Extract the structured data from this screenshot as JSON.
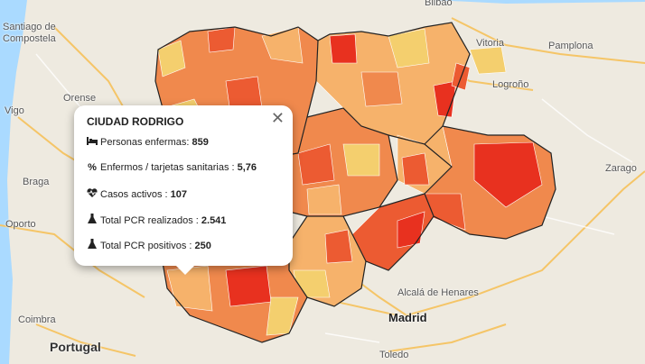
{
  "map": {
    "cities": [
      {
        "id": "bilbao",
        "name": "Bilbao"
      },
      {
        "id": "santiago",
        "name": "Santiago de"
      },
      {
        "id": "santiago2",
        "name": "Compostela"
      },
      {
        "id": "vitoria",
        "name": "Vitoria"
      },
      {
        "id": "pamplona",
        "name": "Pamplona"
      },
      {
        "id": "orense",
        "name": "Orense"
      },
      {
        "id": "logrono",
        "name": "Logroño"
      },
      {
        "id": "vigo",
        "name": "Vigo"
      },
      {
        "id": "braga",
        "name": "Braga"
      },
      {
        "id": "zaragoza",
        "name": "Zarago"
      },
      {
        "id": "oporto",
        "name": "Oporto"
      },
      {
        "id": "alcala",
        "name": "Alcalá de Henares"
      },
      {
        "id": "madrid",
        "name": "Madrid"
      },
      {
        "id": "coimbra",
        "name": "Coimbra"
      },
      {
        "id": "portugal",
        "name": "Portugal"
      },
      {
        "id": "toledo",
        "name": "Toledo"
      }
    ],
    "colors": {
      "red": "#e8311f",
      "orange_dark": "#ec5b32",
      "orange": "#f0894d",
      "orange_light": "#f6b26b",
      "yellow": "#f4cf6e",
      "sea": "#aadaff",
      "land": "#eeeae0"
    }
  },
  "popup": {
    "title": "CIUDAD RODRIGO",
    "close": "✕",
    "rows": [
      {
        "icon": "bed-icon",
        "label": "Personas enfermas: ",
        "value": "859"
      },
      {
        "icon": "percent-icon",
        "label": "Enfermos / tarjetas sanitarias : ",
        "value": "5,76"
      },
      {
        "icon": "heartbeat-icon",
        "label": "Casos activos : ",
        "value": "107"
      },
      {
        "icon": "flask-icon",
        "label": "Total PCR realizados : ",
        "value": "2.541"
      },
      {
        "icon": "flask-icon",
        "label": "Total PCR positivos : ",
        "value": "250"
      }
    ]
  }
}
